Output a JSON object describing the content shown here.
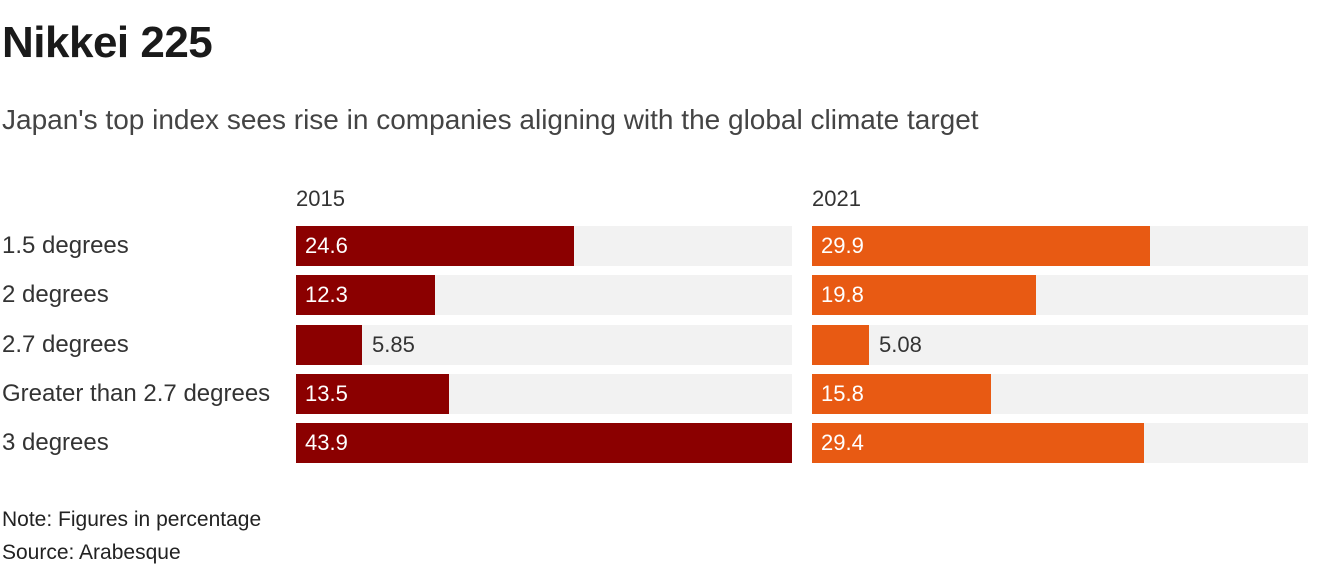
{
  "header": {
    "title": "Nikkei 225",
    "subtitle": "Japan's top index sees rise in companies aligning with the global climate target"
  },
  "footer": {
    "note": "Note: Figures in percentage",
    "source": "Source: Arabesque"
  },
  "chart_data": {
    "type": "bar",
    "orientation": "horizontal",
    "layout": "small-multiples",
    "categories": [
      "1.5 degrees",
      "2 degrees",
      "2.7 degrees",
      "Greater than 2.7 degrees",
      "3 degrees"
    ],
    "xlim": [
      0,
      43.9
    ],
    "grid": false,
    "series": [
      {
        "name": "2015",
        "color": "#8b0000",
        "values": [
          24.6,
          12.3,
          5.85,
          13.5,
          43.9
        ],
        "labels": [
          "24.6",
          "12.3",
          "5.85",
          "13.5",
          "43.9"
        ]
      },
      {
        "name": "2021",
        "color": "#e85a13",
        "values": [
          29.9,
          19.8,
          5.08,
          15.8,
          29.4
        ],
        "labels": [
          "29.9",
          "19.8",
          "5.08",
          "15.8",
          "29.4"
        ]
      }
    ],
    "track_color": "#f2f2f2"
  }
}
